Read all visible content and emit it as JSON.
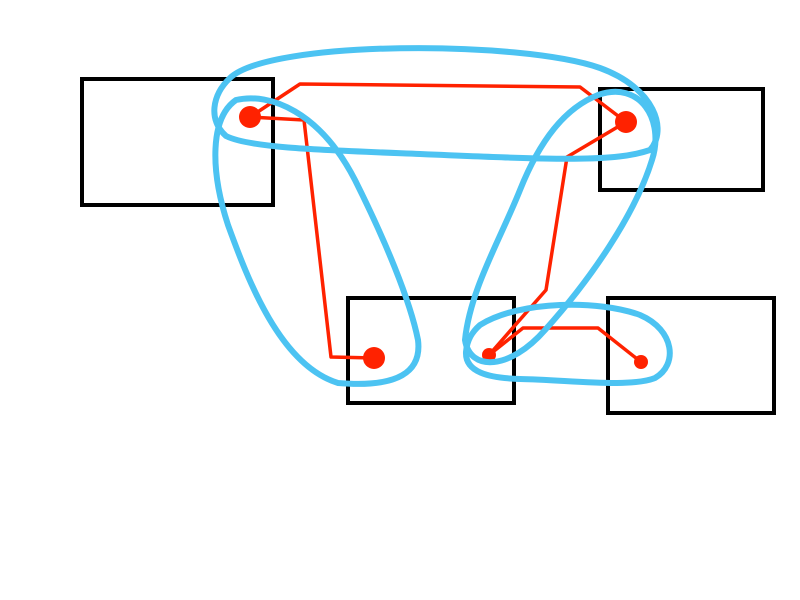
{
  "diagram": {
    "colors": {
      "box": "#000000",
      "wire": "#ff2200",
      "pin": "#ff2200",
      "loop": "#4cc3f2",
      "background": "#ffffff"
    },
    "boxes": [
      {
        "id": "box-top-left"
      },
      {
        "id": "box-top-right"
      },
      {
        "id": "box-bottom-middle"
      },
      {
        "id": "box-bottom-right"
      }
    ],
    "pins": [
      {
        "id": "pin-top-left",
        "box": "box-top-left"
      },
      {
        "id": "pin-top-right",
        "box": "box-top-right"
      },
      {
        "id": "pin-bottom-middle-a",
        "box": "box-bottom-middle"
      },
      {
        "id": "pin-bottom-middle-b",
        "box": "box-bottom-middle"
      },
      {
        "id": "pin-bottom-right",
        "box": "box-bottom-right"
      }
    ],
    "wires": [
      {
        "id": "wire-top",
        "from": "pin-top-left",
        "to": "pin-top-right"
      },
      {
        "id": "wire-left-down",
        "from": "pin-top-left",
        "to": "pin-bottom-middle-a"
      },
      {
        "id": "wire-right-down",
        "from": "pin-top-right",
        "to": "pin-bottom-middle-b"
      },
      {
        "id": "wire-bottom",
        "from": "pin-bottom-middle-b",
        "to": "pin-bottom-right"
      }
    ],
    "loops": [
      {
        "id": "loop-top",
        "encloses": [
          "pin-top-left",
          "pin-top-right"
        ]
      },
      {
        "id": "loop-left",
        "encloses": [
          "pin-top-left",
          "pin-bottom-middle-a"
        ]
      },
      {
        "id": "loop-right",
        "encloses": [
          "pin-top-right",
          "pin-bottom-middle-b"
        ]
      },
      {
        "id": "loop-bottom",
        "encloses": [
          "pin-bottom-middle-b",
          "pin-bottom-right"
        ]
      }
    ]
  }
}
